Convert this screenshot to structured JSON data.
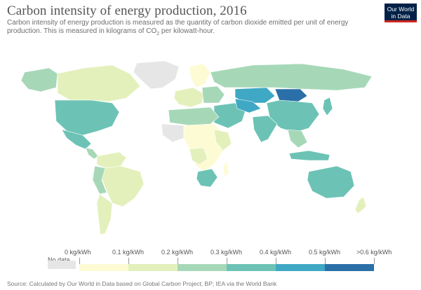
{
  "header": {
    "title": "Carbon intensity of energy production, 2016",
    "subtitle_line1": "Carbon intensity of energy production is measured as the quantity of carbon dioxide emitted per unit of energy",
    "subtitle_line2_pre": "production. This is measured in kilograms of CO",
    "subtitle_line2_sub": "2",
    "subtitle_line2_post": " per kilowatt-hour."
  },
  "logo": {
    "line1": "Our World",
    "line2": "in Data"
  },
  "legend": {
    "no_data_label": "No data",
    "ticks": [
      "0 kg/kWh",
      "0.1 kg/kWh",
      "0.2 kg/kWh",
      "0.3 kg/kWh",
      "0.4 kg/kWh",
      "0.5 kg/kWh",
      ">0.6 kg/kWh"
    ],
    "colors": [
      "#fdfbd4",
      "#e3f0bb",
      "#a6d8b8",
      "#6cc3b5",
      "#3fa8c4",
      "#2a6fa8"
    ]
  },
  "colors": {
    "no_data": "#e6e6e6",
    "ocean": "#ffffff",
    "border": "#ffffff",
    "brand_navy": "#002147",
    "brand_red": "#ce261e"
  },
  "source": "Source: Calculated by Our World in Data based on Global Carbon Project; BP; IEA via the World Bank"
}
